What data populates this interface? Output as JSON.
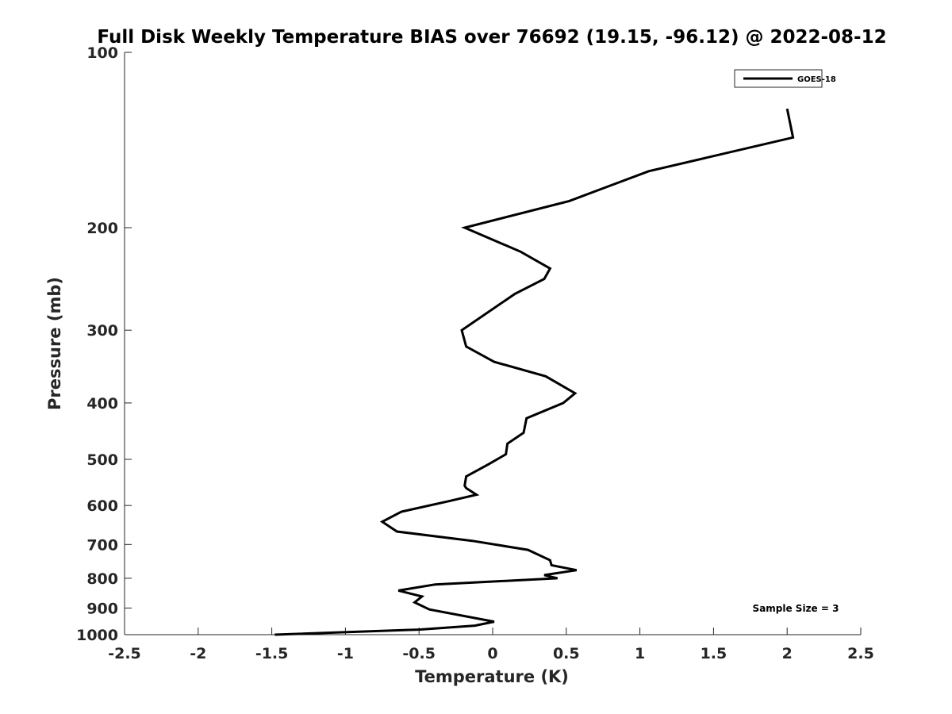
{
  "chart_data": {
    "type": "line",
    "title": "Full Disk Weekly Temperature BIAS over 76692 (19.15, -96.12) @ 2022-08-12",
    "xlabel": "Temperature (K)",
    "ylabel": "Pressure (mb)",
    "xlim": [
      -2.5,
      2.5
    ],
    "ylim": [
      100,
      1000
    ],
    "y_scale": "log",
    "y_reversed": true,
    "grid": false,
    "x_ticks": [
      -2.5,
      -2,
      -1.5,
      -1,
      -0.5,
      0,
      0.5,
      1,
      1.5,
      2,
      2.5
    ],
    "x_tick_labels": [
      "-2.5",
      "-2",
      "-1.5",
      "-1",
      "-0.5",
      "0",
      "0.5",
      "1",
      "1.5",
      "2",
      "2.5"
    ],
    "y_ticks": [
      100,
      200,
      300,
      400,
      500,
      600,
      700,
      800,
      900,
      1000
    ],
    "y_tick_labels": [
      "100",
      "200",
      "300",
      "400",
      "500",
      "600",
      "700",
      "800",
      "900",
      "1000"
    ],
    "legend_position": "top-right",
    "annotation": "Sample Size = 3",
    "series": [
      {
        "name": "GOES-18",
        "color": "#000000",
        "x": [
          2.0,
          2.04,
          1.06,
          0.52,
          -0.19,
          0.19,
          0.39,
          0.35,
          0.15,
          -0.21,
          -0.18,
          0.01,
          0.36,
          0.56,
          0.48,
          0.23,
          0.21,
          0.1,
          0.09,
          -0.03,
          -0.18,
          -0.19,
          -0.18,
          -0.11,
          -0.3,
          -0.62,
          -0.75,
          -0.65,
          -0.14,
          0.24,
          0.39,
          0.4,
          0.57,
          0.35,
          0.44,
          -0.39,
          -0.64,
          -0.48,
          -0.53,
          -0.43,
          0.01,
          -0.12,
          -0.5,
          -1.48
        ],
        "y": [
          125,
          140,
          160,
          180,
          200,
          220,
          235,
          245,
          260,
          300,
          320,
          340,
          360,
          385,
          400,
          425,
          450,
          470,
          490,
          510,
          535,
          555,
          560,
          575,
          590,
          615,
          640,
          665,
          690,
          715,
          745,
          760,
          775,
          790,
          800,
          820,
          840,
          860,
          880,
          905,
          950,
          965,
          980,
          1000
        ]
      }
    ]
  }
}
